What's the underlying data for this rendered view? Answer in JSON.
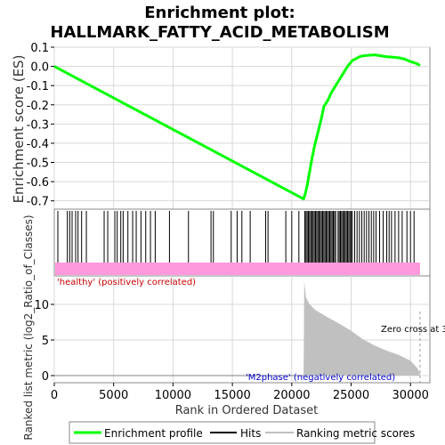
{
  "chart_data": {
    "type": "line",
    "title_line1": "Enrichment plot:",
    "title_line2": "HALLMARK_FATTY_ACID_METABOLISM",
    "ylabel_top": "Enrichment score (ES)",
    "ylabel_bottom": "Ranked list metric (log2_Ratio_of_Classes)",
    "xlabel": "Rank in Ordered Dataset",
    "xlim": [
      0,
      31000
    ],
    "ylim_top": [
      -0.72,
      0.1
    ],
    "ylim_bottom": [
      -1,
      14
    ],
    "x_ticks": [
      0,
      5000,
      10000,
      15000,
      20000,
      25000,
      30000
    ],
    "y_ticks_top": [
      0.1,
      0.0,
      -0.1,
      -0.2,
      -0.3,
      -0.4,
      -0.5,
      -0.6,
      -0.7
    ],
    "y_ticks_bottom": [
      0,
      5,
      10
    ],
    "es_profile": {
      "name": "Enrichment profile",
      "color": "#00ff00",
      "points": [
        [
          0,
          0.0
        ],
        [
          21000,
          -0.69
        ],
        [
          21150,
          -0.66
        ],
        [
          21300,
          -0.62
        ],
        [
          21500,
          -0.55
        ],
        [
          21700,
          -0.48
        ],
        [
          21900,
          -0.42
        ],
        [
          22100,
          -0.37
        ],
        [
          22300,
          -0.32
        ],
        [
          22500,
          -0.27
        ],
        [
          22700,
          -0.21
        ],
        [
          22900,
          -0.19
        ],
        [
          23100,
          -0.17
        ],
        [
          23300,
          -0.14
        ],
        [
          23500,
          -0.12
        ],
        [
          23700,
          -0.1
        ],
        [
          23900,
          -0.08
        ],
        [
          24100,
          -0.06
        ],
        [
          24300,
          -0.04
        ],
        [
          24500,
          -0.02
        ],
        [
          24700,
          0.0
        ],
        [
          24900,
          0.015
        ],
        [
          25100,
          0.03
        ],
        [
          25400,
          0.04
        ],
        [
          25700,
          0.05
        ],
        [
          26000,
          0.055
        ],
        [
          26500,
          0.058
        ],
        [
          27000,
          0.06
        ],
        [
          27500,
          0.055
        ],
        [
          28000,
          0.05
        ],
        [
          28500,
          0.048
        ],
        [
          29000,
          0.045
        ],
        [
          29500,
          0.038
        ],
        [
          30000,
          0.025
        ],
        [
          30500,
          0.015
        ],
        [
          30800,
          0.005
        ]
      ]
    },
    "hits": [
      300,
      1100,
      1300,
      1500,
      1800,
      2000,
      2300,
      2700,
      4200,
      4500,
      5100,
      5300,
      5600,
      5800,
      6200,
      6600,
      6900,
      7300,
      7700,
      8100,
      8500,
      9700,
      11300,
      13200,
      13400,
      14900,
      15400,
      15800,
      16500,
      17800,
      18000,
      19500,
      20000,
      20600,
      21100,
      21200,
      21300,
      21400,
      21500,
      21600,
      21700,
      21800,
      21900,
      22000,
      22100,
      22200,
      22300,
      22400,
      22500,
      22600,
      22700,
      22800,
      22900,
      23000,
      23100,
      23200,
      23300,
      23400,
      23500,
      23600,
      23700,
      23900,
      24000,
      24100,
      24200,
      24300,
      24400,
      24500,
      24600,
      24700,
      24800,
      24900,
      25000,
      25100,
      25300,
      25500,
      25700,
      25900,
      26100,
      26300,
      26500,
      26700,
      26900,
      27100,
      27400,
      27700,
      28000,
      28200,
      28400,
      28700,
      29000,
      29300,
      29700,
      30000,
      30300
    ],
    "ranking_metric": {
      "name": "Ranking metric scores",
      "color": "#c0c0c0",
      "start_rank": 21000,
      "points": [
        [
          21000,
          0.02
        ],
        [
          21050,
          13.2
        ],
        [
          21200,
          11.0
        ],
        [
          21500,
          10.0
        ],
        [
          22000,
          9.2
        ],
        [
          23000,
          8.2
        ],
        [
          24000,
          7.3
        ],
        [
          25000,
          6.3
        ],
        [
          26000,
          5.1
        ],
        [
          27000,
          4.2
        ],
        [
          28000,
          3.5
        ],
        [
          29000,
          2.9
        ],
        [
          30000,
          2.1
        ],
        [
          30600,
          1.0
        ],
        [
          30800,
          0.2
        ]
      ]
    },
    "zero_cross_label": "Zero cross at 3",
    "zero_cross_rank": 30800,
    "class_positive_label": "'healthy' (positively correlated)",
    "class_negative_label": "'M2phase' (negatively correlated)",
    "legend": [
      {
        "label": "Enrichment profile",
        "color": "#00ff00",
        "style": "thick-line"
      },
      {
        "label": "Hits",
        "color": "#000000",
        "style": "thin-line"
      },
      {
        "label": "Ranking metric scores",
        "color": "#c0c0c0",
        "style": "thin-line"
      }
    ],
    "colors": {
      "hit_band": "#ff99dd",
      "class_positive": "#cc0000",
      "class_negative": "#0000cc",
      "grid": "#d8d8d8"
    }
  }
}
